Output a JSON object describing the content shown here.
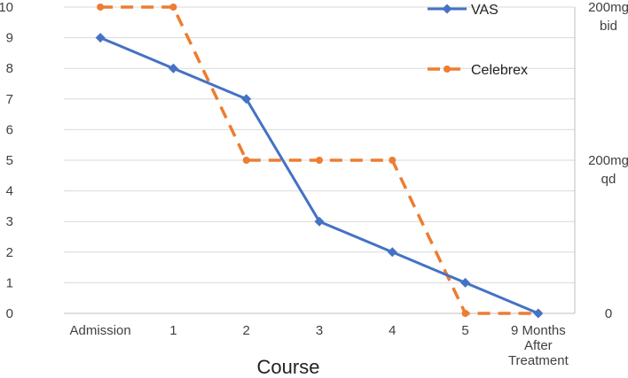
{
  "chart_data": {
    "type": "line",
    "title": "",
    "xlabel": "Course",
    "ylabel": "",
    "categories": [
      "Admission",
      "1",
      "2",
      "3",
      "4",
      "5",
      "9 Months After Treatment"
    ],
    "category_lines": [
      [
        "Admission"
      ],
      [
        "1"
      ],
      [
        "2"
      ],
      [
        "3"
      ],
      [
        "4"
      ],
      [
        "5"
      ],
      [
        "9 Months",
        "After",
        "Treatment"
      ]
    ],
    "ylim": [
      0,
      10
    ],
    "yticks": [
      0,
      1,
      2,
      3,
      4,
      5,
      6,
      7,
      8,
      9,
      10
    ],
    "grid": true,
    "legend_position": "top-right",
    "series": [
      {
        "name": "VAS",
        "axis": "left",
        "values": [
          9,
          8,
          7,
          3,
          2,
          1,
          0
        ],
        "color": "#4472C4",
        "marker": "diamond",
        "line": "solid"
      },
      {
        "name": "Celebrex",
        "axis": "left",
        "values": [
          10,
          10,
          5,
          5,
          5,
          0,
          0
        ],
        "color": "#ED7D31",
        "marker": "circle",
        "line": "dashed"
      }
    ],
    "right_axis": {
      "ticks": [
        {
          "value": 10,
          "lines": [
            "200mg",
            "bid"
          ]
        },
        {
          "value": 5,
          "lines": [
            "200mg",
            "qd"
          ]
        },
        {
          "value": 0,
          "lines": [
            "0"
          ]
        }
      ]
    }
  }
}
